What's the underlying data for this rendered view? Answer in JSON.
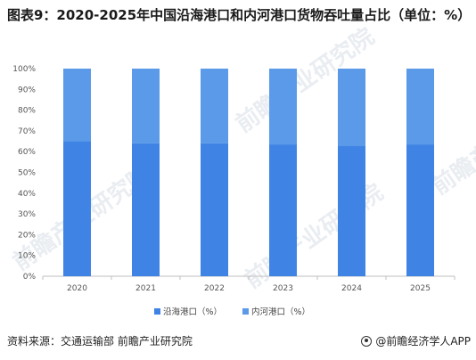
{
  "title": "图表9：2020-2025年中国沿海港口和内河港口货物吞吐量占比（单位：%）",
  "footer": {
    "source": "资料来源：交通运输部  前瞻产业研究院",
    "brand": "@前瞻经济学人APP"
  },
  "watermark": "前瞻产业研究院",
  "colors": {
    "coastal": "#3f84e5",
    "inland": "#5b9ae8",
    "axis": "#bfbfbf"
  },
  "chart_data": {
    "type": "bar",
    "stacked": true,
    "categories": [
      "2020",
      "2021",
      "2022",
      "2023",
      "2024",
      "2025"
    ],
    "series": [
      {
        "name": "沿海港口（%）",
        "values": [
          65,
          64,
          64,
          63.5,
          63,
          63.5
        ]
      },
      {
        "name": "内河港口（%）",
        "values": [
          35,
          36,
          36,
          36.5,
          37,
          36.5
        ]
      }
    ],
    "yticks": [
      "0%",
      "10%",
      "20%",
      "30%",
      "40%",
      "50%",
      "60%",
      "70%",
      "80%",
      "90%",
      "100%"
    ],
    "ylim": [
      0,
      100
    ],
    "grid": false,
    "legend_position": "bottom"
  }
}
